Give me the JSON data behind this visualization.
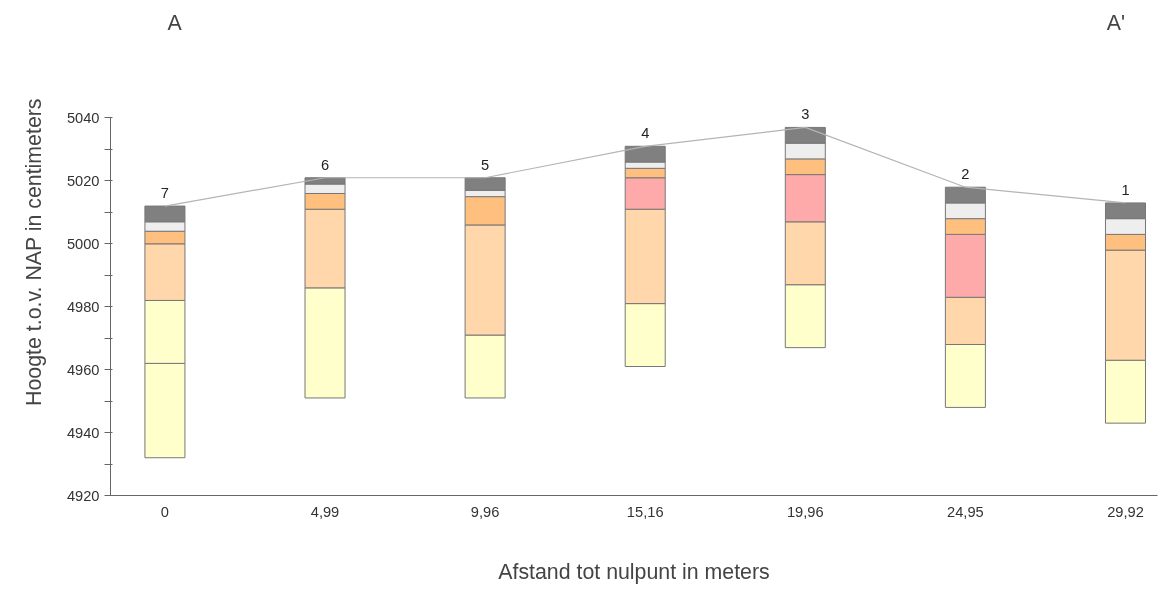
{
  "chart_data": {
    "type": "bar",
    "xlabel": "Afstand tot nulpunt in meters",
    "ylabel": "Hoogte t.o.v. NAP in centimeters",
    "categories": [
      "0",
      "4,99",
      "9,96",
      "15,16",
      "19,96",
      "24,95",
      "29,92"
    ],
    "series": [
      {
        "color": "#ffffcc",
        "base": [
          4932,
          4951,
          4951,
          4961,
          4967,
          4948,
          4943
        ],
        "values": [
          30,
          35,
          20,
          20,
          20,
          20,
          20
        ]
      },
      {
        "color": "#ffffcc",
        "base": [
          4962,
          null,
          null,
          null,
          null,
          null,
          null
        ],
        "values": [
          20,
          null,
          null,
          null,
          null,
          null,
          null
        ]
      },
      {
        "color": "#ffd7aa",
        "base": [
          4982,
          4986,
          4971,
          4981,
          4987,
          4968,
          4963
        ],
        "values": [
          18,
          25,
          35,
          30,
          20,
          15,
          35
        ]
      },
      {
        "color": "#ffaaaa",
        "base": [
          null,
          null,
          null,
          5011,
          5007,
          4983,
          null
        ],
        "values": [
          null,
          null,
          null,
          10,
          15,
          20,
          null
        ]
      },
      {
        "color": "#ffbf7f",
        "base": [
          5000,
          5011,
          5006,
          5021,
          5022,
          5003,
          4998
        ],
        "values": [
          4,
          5,
          9,
          3,
          5,
          5,
          5
        ]
      },
      {
        "color": "#eeeeee",
        "base": [
          5004,
          5016,
          5015,
          5024,
          5027,
          5008,
          5003
        ],
        "values": [
          3,
          3,
          2,
          2,
          5,
          5,
          5
        ]
      },
      {
        "color": "#808080",
        "base": [
          5007,
          5019,
          5017,
          5026,
          5032,
          5013,
          5008
        ],
        "values": [
          5,
          2,
          4,
          5,
          5,
          5,
          5
        ]
      },
      {
        "type": "line",
        "color": "#b4b4b4",
        "values": [
          5012,
          5021,
          5021,
          5031,
          5037,
          5018,
          5013
        ]
      }
    ],
    "ylim": [
      4920,
      5040
    ],
    "yticks": [
      4920,
      {
        "value": 4930,
        "label": null
      },
      4940,
      {
        "value": 4950,
        "label": null
      },
      4960,
      {
        "value": 4970,
        "label": null
      },
      4980,
      {
        "value": 4990,
        "label": null
      },
      5000,
      {
        "value": 5010,
        "label": null
      },
      5020,
      {
        "value": 5030,
        "label": null
      },
      5040
    ],
    "grid": false,
    "annotations": [
      "A",
      "A'",
      {
        "text": "7",
        "x": "0",
        "y": 5012
      },
      {
        "text": "6",
        "x": "4,99",
        "y": 5021
      },
      {
        "text": "5",
        "x": "9,96",
        "y": 5021
      },
      {
        "text": "4",
        "x": "15,16",
        "y": 5031
      },
      {
        "text": "3",
        "x": "19,96",
        "y": 5037
      },
      {
        "text": "2",
        "x": "24,95",
        "y": 5018
      },
      {
        "text": "1",
        "x": "29,92",
        "y": 5013
      }
    ]
  }
}
